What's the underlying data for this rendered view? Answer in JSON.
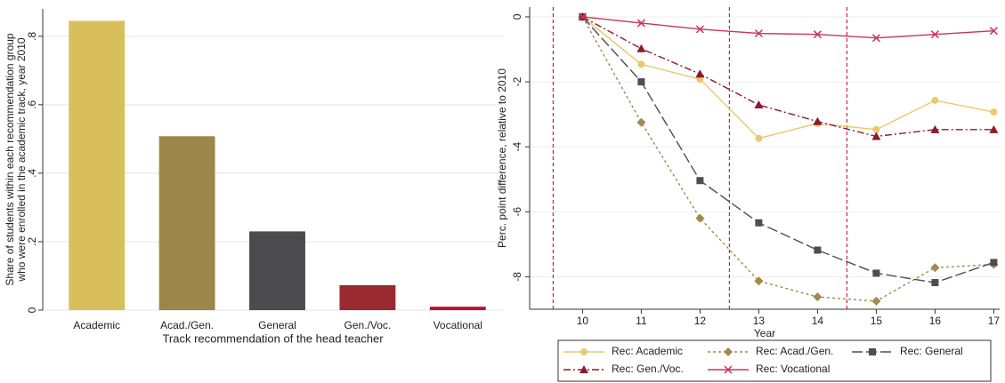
{
  "chart_data": [
    {
      "type": "bar",
      "ylabel": [
        "Share of students within each recommendation group",
        "who were enrolled in the academic track, year 2010"
      ],
      "xlabel": "Track recommendation of the head teacher",
      "categories": [
        "Academic",
        "Acad./Gen.",
        "General",
        "Gen./Voc.",
        "Vocational"
      ],
      "values": [
        0.845,
        0.508,
        0.23,
        0.073,
        0.01
      ],
      "colors": [
        "#d8bf5c",
        "#9c864a",
        "#4b4b4d",
        "#992a30",
        "#b8102c"
      ],
      "ylim": [
        0,
        0.88
      ],
      "yticks": [
        0,
        {
          "value": 0.2,
          "label": ".2"
        },
        {
          "value": 0.4,
          "label": ".4"
        },
        {
          "value": 0.6,
          "label": ".6"
        },
        {
          "value": 0.8,
          "label": ".8"
        }
      ],
      "grid": true
    },
    {
      "type": "line",
      "ylabel": "Perc. point difference, relative to 2010",
      "xlabel": "Year",
      "x": [
        10,
        11,
        12,
        13,
        14,
        15,
        16,
        17
      ],
      "xlim": [
        9.1,
        17.1
      ],
      "xticks": [
        10,
        11,
        12,
        13,
        14,
        15,
        16,
        17
      ],
      "ylim": [
        -9,
        0.3
      ],
      "yticks": [
        0,
        -2,
        -4,
        -6,
        -8
      ],
      "grid": true,
      "reference_lines": {
        "x": [
          9.5,
          12.5,
          14.5
        ],
        "color": "#d0204a"
      },
      "series": [
        {
          "name": "Rec: Academic",
          "color": "#e8c96c",
          "marker": "circle",
          "dash": "none",
          "values": [
            0,
            -1.46,
            -1.92,
            -3.74,
            -3.28,
            -3.47,
            -2.57,
            -2.93
          ]
        },
        {
          "name": "Rec: Acad./Gen.",
          "color": "#a08a4c",
          "marker": "diamond",
          "dash": "3,3",
          "values": [
            0,
            -3.25,
            -6.2,
            -8.13,
            -8.62,
            -8.75,
            -7.72,
            -7.62
          ]
        },
        {
          "name": "Rec: General",
          "color": "#4d4d55",
          "marker": "square",
          "dash": "12,4",
          "values": [
            0,
            -2.0,
            -5.04,
            -6.34,
            -7.18,
            -7.89,
            -8.18,
            -7.56
          ]
        },
        {
          "name": "Rec: Gen./Voc.",
          "color": "#8c1a2c",
          "marker": "triangle",
          "dash": "8,3,2,3",
          "values": [
            0,
            -0.98,
            -1.76,
            -2.71,
            -3.22,
            -3.68,
            -3.47,
            -3.47
          ]
        },
        {
          "name": "Rec: Vocational",
          "color": "#cc335e",
          "marker": "x",
          "dash": "none",
          "values": [
            0,
            -0.19,
            -0.38,
            -0.51,
            -0.54,
            -0.65,
            -0.54,
            -0.43
          ]
        }
      ],
      "legend": "bottom"
    }
  ]
}
